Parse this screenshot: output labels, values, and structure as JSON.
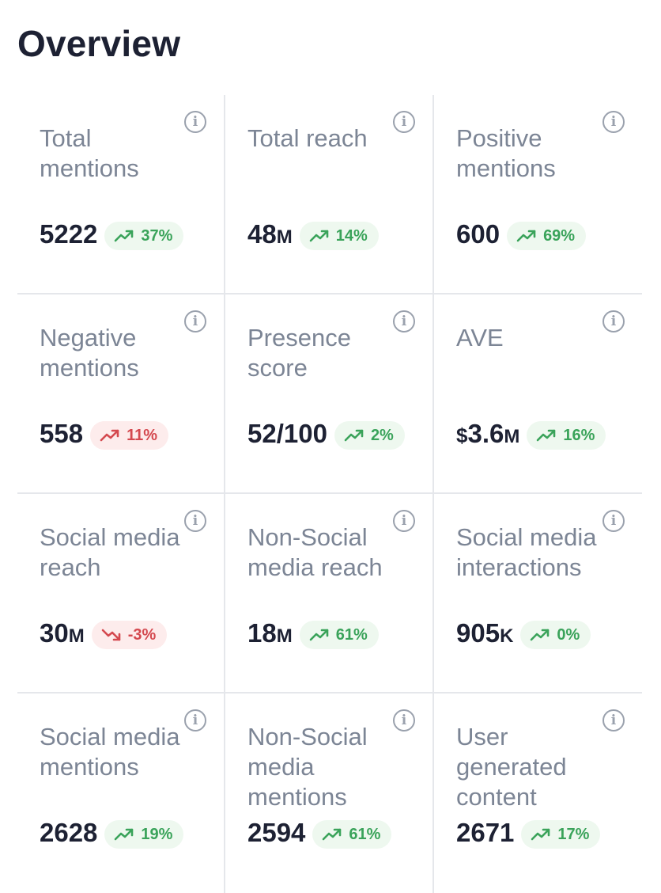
{
  "page": {
    "title": "Overview",
    "info_glyph": "i"
  },
  "colors": {
    "positive": "#3aa35a",
    "positive_bg": "#eef8ef",
    "negative": "#d4494f",
    "negative_bg": "#fdecec",
    "label": "#7c8595",
    "value": "#1d2133"
  },
  "cards": [
    {
      "label": "Total mentions",
      "value": "5222",
      "unit": "",
      "prefix": "",
      "change": "37%",
      "change_color": "positive",
      "trend_icon": "trend-up-icon"
    },
    {
      "label": "Total reach",
      "value": "48",
      "unit": "M",
      "prefix": "",
      "change": "14%",
      "change_color": "positive",
      "trend_icon": "trend-up-icon"
    },
    {
      "label": "Positive mentions",
      "value": "600",
      "unit": "",
      "prefix": "",
      "change": "69%",
      "change_color": "positive",
      "trend_icon": "trend-up-icon"
    },
    {
      "label": "Negative mentions",
      "value": "558",
      "unit": "",
      "prefix": "",
      "change": "11%",
      "change_color": "negative",
      "trend_icon": "trend-up-icon"
    },
    {
      "label": "Presence score",
      "value": "52/100",
      "unit": "",
      "prefix": "",
      "change": "2%",
      "change_color": "positive",
      "trend_icon": "trend-up-icon"
    },
    {
      "label": "AVE",
      "value": "3.6",
      "unit": "M",
      "prefix": "$",
      "change": "16%",
      "change_color": "positive",
      "trend_icon": "trend-up-icon"
    },
    {
      "label": "Social media reach",
      "value": "30",
      "unit": "M",
      "prefix": "",
      "change": "-3%",
      "change_color": "negative",
      "trend_icon": "trend-down-icon"
    },
    {
      "label": "Non-Social media reach",
      "value": "18",
      "unit": "M",
      "prefix": "",
      "change": "61%",
      "change_color": "positive",
      "trend_icon": "trend-up-icon"
    },
    {
      "label": "Social media interactions",
      "value": "905",
      "unit": "K",
      "prefix": "",
      "change": "0%",
      "change_color": "positive",
      "trend_icon": "trend-up-icon"
    },
    {
      "label": "Social media mentions",
      "value": "2628",
      "unit": "",
      "prefix": "",
      "change": "19%",
      "change_color": "positive",
      "trend_icon": "trend-up-icon"
    },
    {
      "label": "Non-Social media mentions",
      "value": "2594",
      "unit": "",
      "prefix": "",
      "change": "61%",
      "change_color": "positive",
      "trend_icon": "trend-up-icon"
    },
    {
      "label": "User generated content",
      "value": "2671",
      "unit": "",
      "prefix": "",
      "change": "17%",
      "change_color": "positive",
      "trend_icon": "trend-up-icon"
    }
  ]
}
